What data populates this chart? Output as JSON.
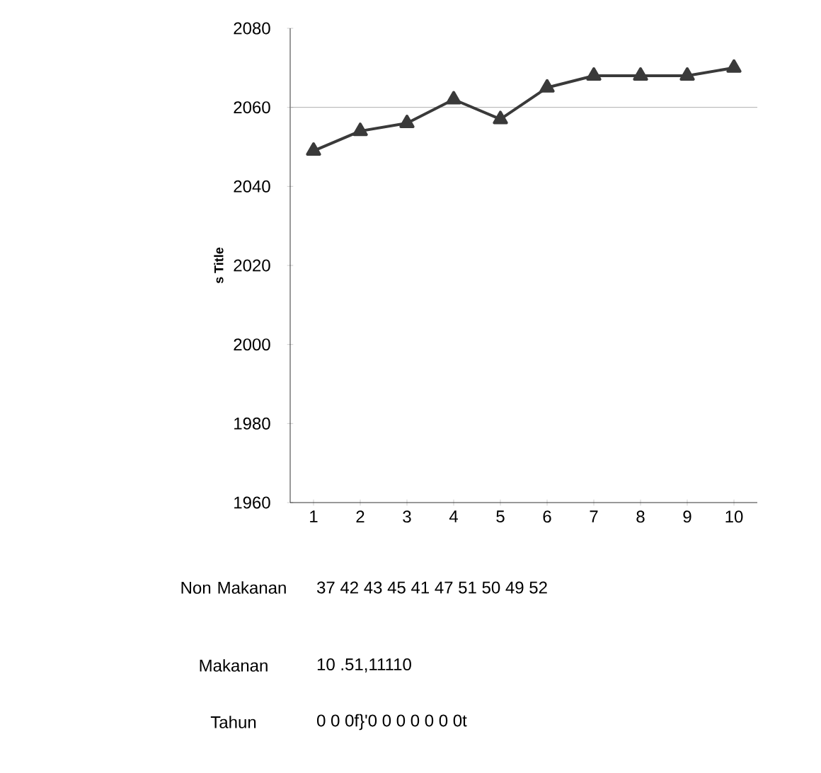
{
  "chart_data": {
    "type": "line",
    "ylabel": "s Title",
    "categories": [
      "1",
      "2",
      "3",
      "4",
      "5",
      "6",
      "7",
      "8",
      "9",
      "10"
    ],
    "series": [
      {
        "color": "#3a3a3a",
        "values": [
          2049,
          2054,
          2056,
          2062,
          2057,
          2065,
          2068,
          2068,
          2068,
          2070
        ]
      }
    ],
    "ylim": [
      1960,
      2080
    ],
    "yticks": [
      1960,
      1980,
      2000,
      2020,
      2040,
      2060,
      2080
    ],
    "marker": "triangle",
    "line_style": "solid",
    "grid": false,
    "ref_lines": [
      {
        "axis": "y",
        "value": 2060,
        "color": "#9a9a9a"
      }
    ],
    "annotations": [
      "Non Makanan",
      "37 42 43 45 41 47 51 50 49 52",
      "Makanan",
      "10 .51,11110",
      "Tahun",
      "0 0 0f}'0 0 0 0 0 0 0t"
    ]
  }
}
